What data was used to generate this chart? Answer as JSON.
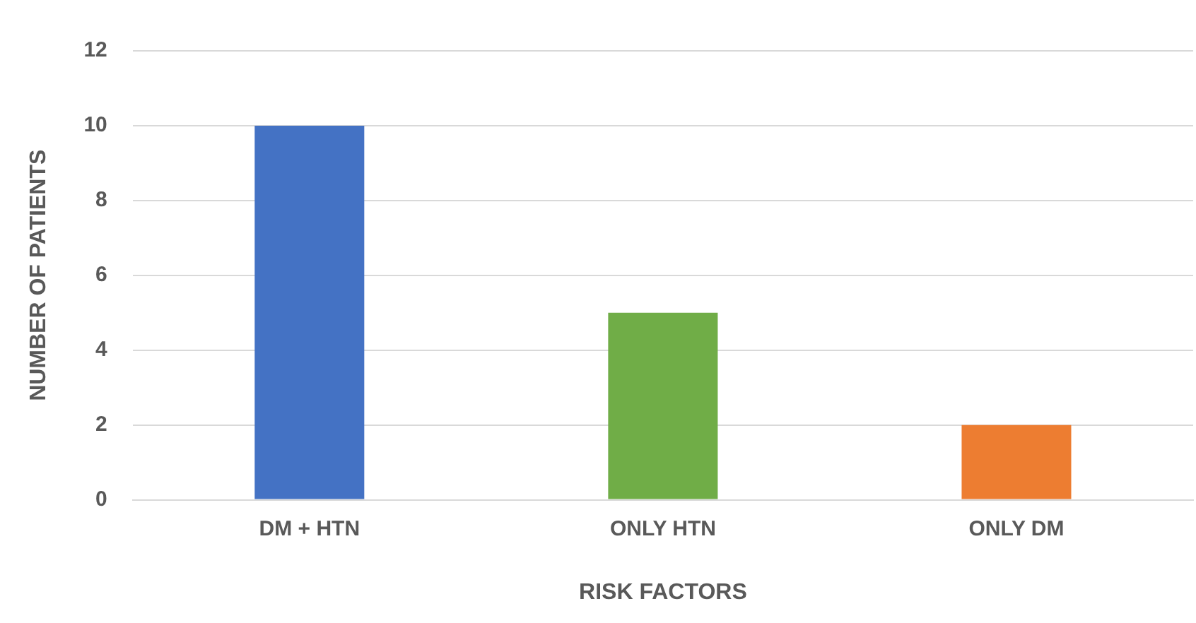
{
  "chart_data": {
    "type": "bar",
    "xlabel": "RISK FACTORS",
    "ylabel": "NUMBER OF PATIENTS",
    "categories": [
      "DM + HTN",
      "ONLY HTN",
      "ONLY DM"
    ],
    "values": [
      10,
      5,
      2
    ],
    "colors": [
      "#4472c4",
      "#70ad47",
      "#ed7d31"
    ],
    "ylim": [
      0,
      12
    ],
    "yticks": [
      0,
      2,
      4,
      6,
      8,
      10,
      12
    ],
    "grid": "y",
    "legend": false
  }
}
